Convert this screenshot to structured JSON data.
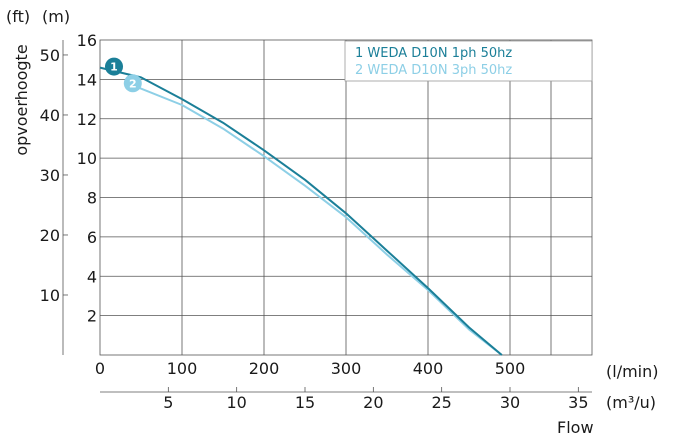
{
  "chart_data": {
    "type": "line",
    "ylabel": "opvoerhoogte",
    "xlabel": "Flow",
    "y_unit_primary": "(m)",
    "y_unit_secondary": "(ft)",
    "x_unit_primary": "(l/min)",
    "x_unit_secondary": "(m³/u)",
    "xlim": [
      0,
      600
    ],
    "ylim": [
      0,
      16
    ],
    "x_ticks_primary": [
      0,
      100,
      200,
      300,
      400,
      500
    ],
    "x_ticks_secondary": [
      5,
      10,
      15,
      20,
      25,
      30,
      35
    ],
    "y_ticks_primary": [
      2,
      4,
      6,
      8,
      10,
      12,
      14,
      16
    ],
    "y_ticks_secondary": [
      10,
      20,
      30,
      40,
      50
    ],
    "grid": true,
    "legend_position": "top-right",
    "series": [
      {
        "name": "1 WEDA D10N 1ph 50hz",
        "marker_label": "1",
        "color": "#1b7f98",
        "x": [
          0,
          50,
          100,
          150,
          200,
          250,
          300,
          350,
          400,
          450,
          490
        ],
        "y": [
          14.6,
          14.1,
          13.0,
          11.8,
          10.4,
          8.9,
          7.2,
          5.3,
          3.4,
          1.4,
          0
        ]
      },
      {
        "name": "2 WEDA D10N 3ph 50hz",
        "marker_label": "2",
        "color": "#8dcfe6",
        "x": [
          40,
          100,
          150,
          200,
          250,
          300,
          350,
          400,
          450,
          490
        ],
        "y": [
          13.7,
          12.7,
          11.5,
          10.1,
          8.6,
          7.0,
          5.1,
          3.3,
          1.3,
          0
        ]
      }
    ]
  }
}
